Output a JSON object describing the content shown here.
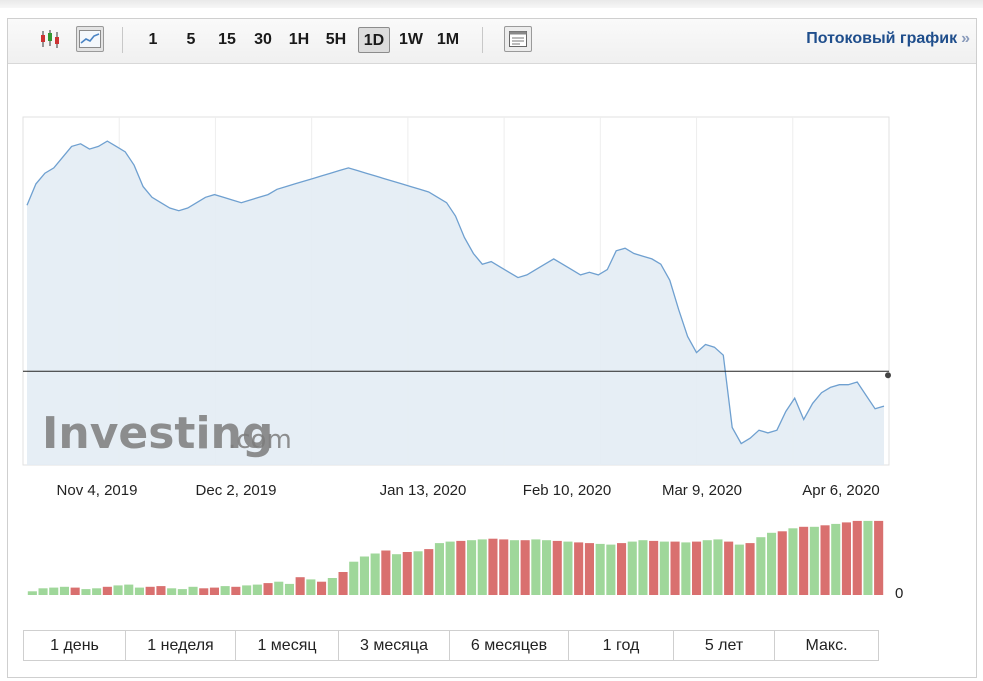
{
  "toolbar": {
    "icons": [
      "candlestick-chart-icon",
      "line-chart-icon",
      "table-view-icon"
    ],
    "timeframes": [
      "1",
      "5",
      "15",
      "30",
      "1H",
      "5H",
      "1D",
      "1W",
      "1M"
    ],
    "active_timeframe": "1D",
    "stream_label": "Потоковый график",
    "stream_arrow": "»"
  },
  "watermark": {
    "brand": "Investing",
    "suffix": ".com"
  },
  "chart_data": {
    "type": "area",
    "x_tick_labels": [
      "Nov 4, 2019",
      "Dec 2, 2019",
      "Jan 13, 2020",
      "Feb 10, 2020",
      "Mar 9, 2020",
      "Apr 6, 2020"
    ],
    "price": [
      62,
      70,
      74,
      76,
      80,
      84,
      85,
      83,
      84,
      86,
      84,
      82,
      77,
      69,
      65,
      63,
      61,
      60,
      61,
      63,
      65,
      66,
      65,
      64,
      63,
      64,
      65,
      66,
      68,
      69,
      70,
      71,
      72,
      73,
      74,
      75,
      76,
      75,
      74,
      73,
      72,
      71,
      70,
      69,
      68,
      67,
      65,
      63,
      58,
      50,
      44,
      40,
      41,
      39,
      37,
      35,
      36,
      38,
      40,
      42,
      40,
      38,
      36,
      37,
      36,
      38,
      45,
      46,
      44,
      43,
      42,
      40,
      34,
      23,
      13,
      7,
      10,
      9,
      6,
      -21,
      -27,
      -25,
      -22,
      -23,
      -22,
      -15,
      -10,
      -18,
      -12,
      -8,
      -6,
      -5,
      -5,
      -4,
      -9,
      -14,
      -13
    ],
    "reference_line": 0,
    "volume": [
      5,
      9,
      10,
      11,
      10,
      8,
      9,
      11,
      13,
      14,
      10,
      11,
      12,
      9,
      8,
      11,
      9,
      10,
      12,
      11,
      13,
      14,
      16,
      18,
      15,
      24,
      21,
      18,
      23,
      31,
      45,
      52,
      56,
      60,
      55,
      58,
      59,
      62,
      70,
      72,
      73,
      74,
      75,
      76,
      75,
      74,
      74,
      75,
      74,
      73,
      72,
      71,
      70,
      69,
      68,
      70,
      72,
      74,
      73,
      72,
      72,
      71,
      72,
      74,
      75,
      72,
      68,
      70,
      78,
      84,
      86,
      90,
      92,
      92,
      94,
      96,
      98,
      100,
      100,
      100
    ],
    "volume_label": "0",
    "volume_sign": [
      "up",
      "up",
      "up",
      "up",
      "down",
      "up",
      "up",
      "down",
      "up",
      "up",
      "up",
      "down",
      "down",
      "up",
      "up",
      "up",
      "down",
      "down",
      "up",
      "down",
      "up",
      "up",
      "down",
      "up",
      "up",
      "down",
      "up",
      "down",
      "up",
      "down",
      "up",
      "up",
      "up",
      "down",
      "up",
      "down",
      "up",
      "down",
      "up",
      "up",
      "down",
      "up",
      "up",
      "down",
      "down",
      "up",
      "down",
      "up",
      "up",
      "down",
      "up",
      "down",
      "down",
      "up",
      "up",
      "down",
      "up",
      "up",
      "down",
      "up",
      "down",
      "up",
      "down",
      "up",
      "up",
      "down",
      "up",
      "down",
      "up",
      "up",
      "down",
      "up",
      "down",
      "up",
      "down",
      "up",
      "down",
      "down",
      "up",
      "down"
    ]
  },
  "periods": [
    "1 день",
    "1 неделя",
    "1 месяц",
    "3 месяца",
    "6 месяцев",
    "1 год",
    "5 лет",
    "Макс."
  ]
}
